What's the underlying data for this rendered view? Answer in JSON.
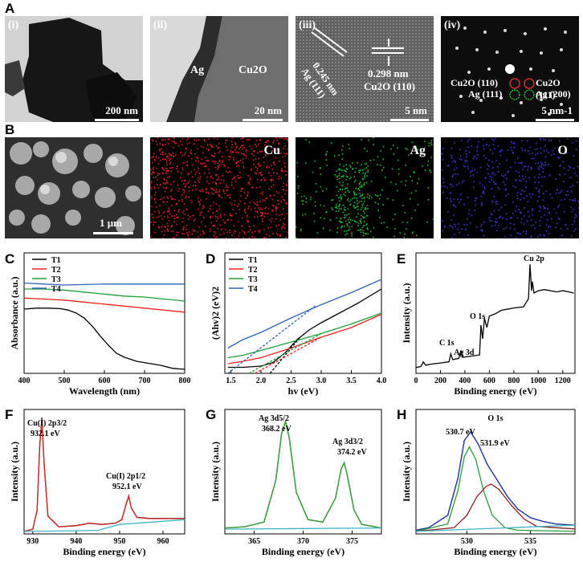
{
  "figure_labels": {
    "A": "A",
    "B": "B",
    "C": "C",
    "D": "D",
    "E": "E",
    "F": "F",
    "G": "G",
    "H": "H"
  },
  "panel_a": {
    "i": {
      "tag": "(i)",
      "scale": "200 nm"
    },
    "ii": {
      "tag": "(ii)",
      "phase_left": "Ag",
      "phase_right": "Cu2O",
      "scale": "20 nm"
    },
    "iii": {
      "tag": "(iii)",
      "d1": "0.245 nm",
      "p1": "Ag (111)",
      "d2": "0.298 nm",
      "p2": "Cu2O (110)",
      "scale": "5 nm"
    },
    "iv": {
      "tag": "(iv)",
      "s1": "Cu2O (110)",
      "s2": "Cu2O (111)",
      "s3": "Ag (111)",
      "s4": "Ag (200)",
      "scale": "5 nm-1"
    }
  },
  "panel_b": {
    "sem_scale": "1 μm",
    "map_cu": "Cu",
    "map_ag": "Ag",
    "map_o": "O"
  },
  "colors": {
    "T1": "#000000",
    "T2": "#e8231e",
    "T3": "#1f9e3a",
    "T4": "#2f63b8",
    "fit_red": "#d42a2a",
    "fit_green": "#3aa33a",
    "fit_blue": "#2b3fb0",
    "baseline": "#3fb5c6",
    "o_sub1": "#2f9a3a",
    "o_sub2": "#8b1e1e"
  },
  "chart_data": [
    {
      "id": "C",
      "type": "line",
      "xlabel": "Wavelength (nm)",
      "ylabel": "Absorbance (a.u.)",
      "xlim": [
        400,
        800
      ],
      "xticks": [
        400,
        500,
        600,
        700,
        800
      ],
      "series": [
        {
          "name": "T1",
          "x": [
            400,
            430,
            460,
            490,
            510,
            530,
            550,
            570,
            590,
            610,
            630,
            650,
            680,
            710,
            740,
            770,
            800
          ],
          "y": [
            0.64,
            0.65,
            0.65,
            0.645,
            0.63,
            0.6,
            0.55,
            0.47,
            0.37,
            0.28,
            0.2,
            0.16,
            0.12,
            0.1,
            0.08,
            0.05,
            0.04
          ]
        },
        {
          "name": "T2",
          "x": [
            400,
            450,
            500,
            550,
            600,
            650,
            700,
            750,
            800
          ],
          "y": [
            0.75,
            0.74,
            0.73,
            0.71,
            0.69,
            0.67,
            0.65,
            0.63,
            0.61
          ]
        },
        {
          "name": "T3",
          "x": [
            400,
            450,
            500,
            550,
            600,
            650,
            700,
            750,
            800
          ],
          "y": [
            0.84,
            0.84,
            0.83,
            0.81,
            0.79,
            0.77,
            0.76,
            0.74,
            0.72
          ]
        },
        {
          "name": "T4",
          "x": [
            400,
            450,
            500,
            550,
            600,
            650,
            700,
            750,
            800
          ],
          "y": [
            0.9,
            0.89,
            0.88,
            0.885,
            0.89,
            0.89,
            0.89,
            0.89,
            0.89
          ]
        }
      ],
      "legend": "top-left"
    },
    {
      "id": "D",
      "type": "line",
      "xlabel": "hv (eV)",
      "ylabel": "(Ahv)2 (eV)2",
      "xlim": [
        1.4,
        4.0
      ],
      "xticks": [
        1.5,
        2.0,
        2.5,
        3.0,
        3.5,
        4.0
      ],
      "series": [
        {
          "name": "T1",
          "x": [
            1.45,
            1.7,
            2.0,
            2.2,
            2.4,
            2.6,
            2.8,
            3.0,
            3.3,
            3.6,
            4.0
          ],
          "y": [
            0.05,
            0.05,
            0.06,
            0.09,
            0.17,
            0.28,
            0.36,
            0.42,
            0.5,
            0.58,
            0.7
          ]
        },
        {
          "name": "T2",
          "x": [
            1.45,
            1.7,
            2.0,
            2.5,
            3.0,
            3.5,
            4.0
          ],
          "y": [
            0.08,
            0.1,
            0.13,
            0.21,
            0.3,
            0.38,
            0.49
          ]
        },
        {
          "name": "T3",
          "x": [
            1.45,
            1.7,
            2.0,
            2.5,
            3.0,
            3.5,
            4.0
          ],
          "y": [
            0.13,
            0.15,
            0.19,
            0.26,
            0.33,
            0.41,
            0.5
          ]
        },
        {
          "name": "T4",
          "x": [
            1.45,
            1.7,
            2.0,
            2.5,
            3.0,
            3.5,
            4.0
          ],
          "y": [
            0.21,
            0.28,
            0.34,
            0.46,
            0.57,
            0.67,
            0.78
          ]
        }
      ],
      "tangents": [
        {
          "series": "T1",
          "x": [
            2.15,
            2.65
          ],
          "y": [
            0.0,
            0.3
          ]
        },
        {
          "series": "T2",
          "x": [
            1.9,
            3.0
          ],
          "y": [
            0.0,
            0.3
          ]
        },
        {
          "series": "T3",
          "x": [
            1.8,
            3.0
          ],
          "y": [
            0.0,
            0.33
          ]
        },
        {
          "series": "T4",
          "x": [
            1.45,
            2.9
          ],
          "y": [
            0.0,
            0.56
          ]
        }
      ],
      "legend": "top-left"
    },
    {
      "id": "E",
      "type": "line",
      "xlabel": "Binding energy (eV)",
      "ylabel": "Intensity (a.u.)",
      "xlim": [
        0,
        1300
      ],
      "xticks": [
        0,
        200,
        400,
        600,
        800,
        1000,
        1200
      ],
      "series": [
        {
          "name": "",
          "x": [
            0,
            40,
            60,
            80,
            120,
            200,
            270,
            285,
            300,
            350,
            368,
            380,
            450,
            520,
            531,
            545,
            560,
            580,
            600,
            650,
            700,
            800,
            880,
            920,
            932,
            945,
            952,
            965,
            1000,
            1050,
            1100,
            1150,
            1200,
            1250,
            1290
          ],
          "y": [
            0.05,
            0.06,
            0.1,
            0.07,
            0.08,
            0.09,
            0.1,
            0.17,
            0.12,
            0.13,
            0.2,
            0.14,
            0.15,
            0.16,
            0.42,
            0.3,
            0.48,
            0.4,
            0.5,
            0.52,
            0.55,
            0.57,
            0.58,
            0.65,
            0.95,
            0.72,
            0.8,
            0.7,
            0.72,
            0.73,
            0.72,
            0.71,
            0.72,
            0.71,
            0.7
          ]
        }
      ],
      "annotations": [
        "C 1s",
        "Ag 3d",
        "O 1s",
        "Cu 2p"
      ]
    },
    {
      "id": "F",
      "type": "line",
      "xlabel": "Binding energy (eV)",
      "ylabel": "Intensity (a.u.)",
      "xlim": [
        928,
        965
      ],
      "xticks": [
        930,
        940,
        950,
        960
      ],
      "series": [
        {
          "name": "",
          "x": [
            928,
            930,
            931,
            931.6,
            932.1,
            932.6,
            933.5,
            936,
            940,
            943,
            946,
            949,
            950.5,
            951.5,
            952.1,
            952.7,
            954,
            957,
            960,
            965
          ],
          "y": [
            0.02,
            0.04,
            0.2,
            0.75,
            0.98,
            0.6,
            0.15,
            0.06,
            0.07,
            0.09,
            0.08,
            0.09,
            0.12,
            0.25,
            0.32,
            0.22,
            0.14,
            0.13,
            0.13,
            0.13
          ]
        }
      ],
      "peaks": [
        {
          "label": "Cu(I) 2p3/2",
          "position": "932.1 eV"
        },
        {
          "label": "Cu(I) 2p1/2",
          "position": "952.1 eV"
        }
      ]
    },
    {
      "id": "G",
      "type": "line",
      "xlabel": "Binding energy (eV)",
      "ylabel": "Intensity (a.u.)",
      "xlim": [
        362,
        378
      ],
      "xticks": [
        365,
        370,
        375
      ],
      "series": [
        {
          "name": "",
          "x": [
            362,
            364,
            366,
            367.2,
            367.8,
            368.2,
            368.6,
            369.3,
            370.5,
            372,
            373.3,
            373.9,
            374.2,
            374.5,
            375.2,
            376,
            378
          ],
          "y": [
            0.05,
            0.06,
            0.1,
            0.45,
            0.85,
            0.95,
            0.8,
            0.35,
            0.12,
            0.1,
            0.3,
            0.55,
            0.6,
            0.5,
            0.2,
            0.08,
            0.05
          ]
        }
      ],
      "peaks": [
        {
          "label": "Ag 3d5/2",
          "position": "368.2 eV"
        },
        {
          "label": "Ag 3d3/2",
          "position": "374.2 eV"
        }
      ]
    },
    {
      "id": "H",
      "type": "line",
      "title": "O 1s",
      "xlabel": "Binding energy (eV)",
      "ylabel": "Intensity (a.u.)",
      "xlim": [
        526,
        538.5
      ],
      "xticks": [
        530,
        535
      ],
      "series": [
        {
          "name": "",
          "x": [
            526,
            527,
            528.5,
            529.3,
            529.8,
            530.3,
            530.9,
            531.6,
            532.4,
            533.2,
            534,
            535,
            536,
            537,
            538.5
          ],
          "y": [
            0.03,
            0.05,
            0.15,
            0.45,
            0.75,
            0.82,
            0.72,
            0.56,
            0.43,
            0.3,
            0.2,
            0.13,
            0.1,
            0.08,
            0.07
          ]
        }
      ],
      "peaks": [
        {
          "label": "O 1s",
          "position": "530.7 eV"
        },
        {
          "label": "O 1s",
          "position": "531.9 eV"
        }
      ]
    }
  ]
}
